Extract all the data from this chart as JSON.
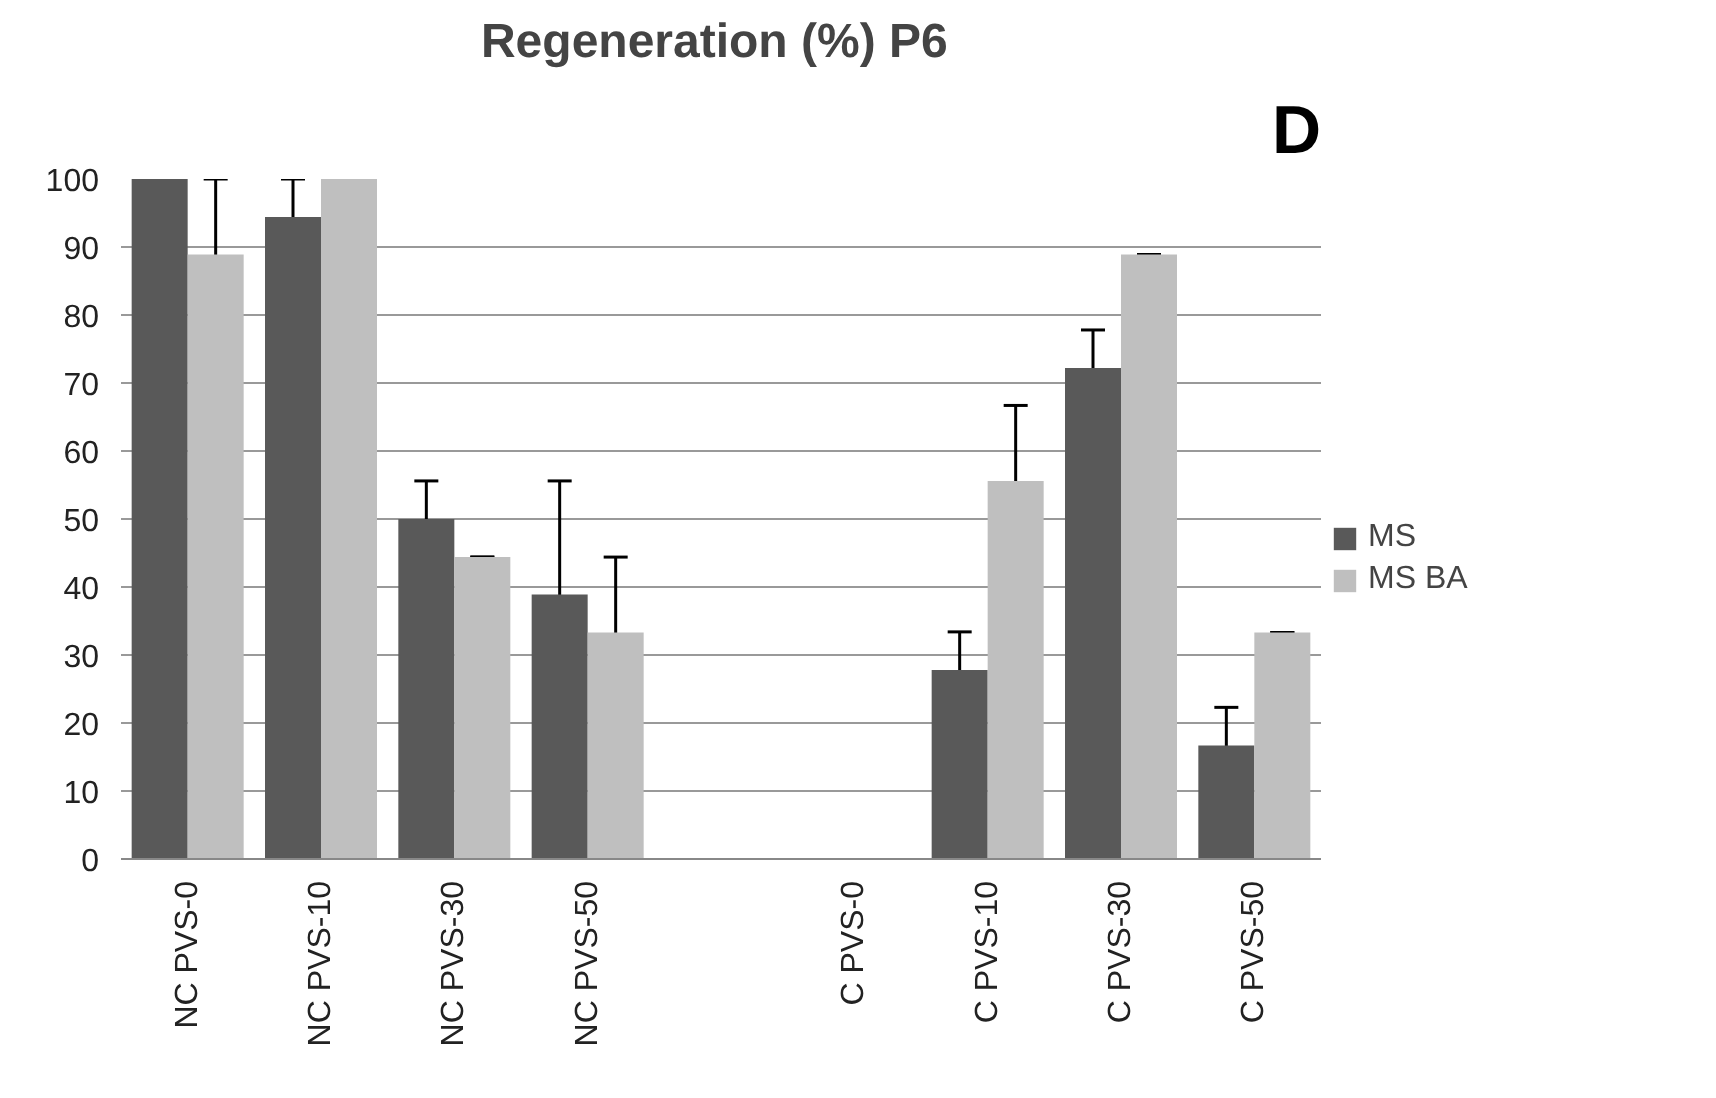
{
  "chart_data": {
    "type": "bar",
    "title": "Regeneration (%)  P6",
    "categories": [
      "NC PVS-0",
      "NC PVS-10",
      "NC PVS-30",
      "NC PVS-50",
      null,
      "C PVS-0",
      "C PVS-10",
      "C PVS-30",
      "C PVS-50"
    ],
    "series": [
      {
        "name": "MS",
        "color": "#595959",
        "values": [
          100,
          94.4,
          50,
          38.9,
          null,
          0,
          27.8,
          72.2,
          16.7
        ],
        "errors": [
          0,
          5.6,
          5.6,
          16.7,
          null,
          null,
          5.6,
          5.6,
          5.6
        ]
      },
      {
        "name": "MS BA",
        "color": "#bfbfbf",
        "values": [
          88.9,
          100,
          44.4,
          33.3,
          null,
          0,
          55.6,
          88.9,
          33.3
        ],
        "errors": [
          11.1,
          0,
          0,
          11.1,
          null,
          null,
          11.1,
          0,
          0
        ]
      }
    ],
    "ylim": [
      0,
      100
    ],
    "yticks": [
      0,
      10,
      20,
      30,
      40,
      50,
      60,
      70,
      80,
      90,
      100
    ],
    "grid": "y",
    "legend": "right",
    "annotations": [
      "D"
    ]
  }
}
